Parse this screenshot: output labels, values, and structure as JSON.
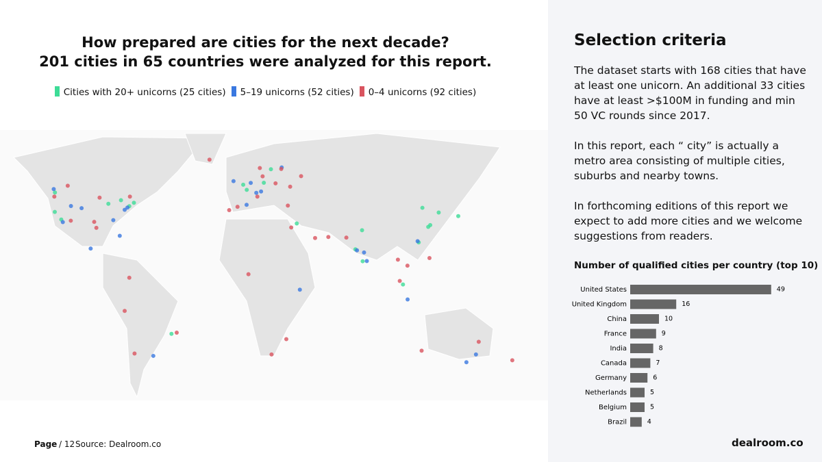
{
  "header": {
    "title_lines": [
      "How prepared are cities for the next decade?",
      "201 cities in 65 countries were analyzed for this report."
    ]
  },
  "sidebar": {
    "title": "Selection criteria",
    "paragraphs": [
      "The dataset starts with 168 cities that have at least one unicorn. An additional 33 cities have at least >$100M in funding and min 50 VC rounds since 2017.",
      "In this report, each “ city” is actually a metro area consisting of multiple cities, suburbs and nearby towns.",
      "In forthcoming editions of this report we expect to add more cities and we welcome suggestions from readers."
    ]
  },
  "footer": {
    "page_label": "Page",
    "page_number": "/ 12",
    "source": "Source: Dealroom.co",
    "brand": "dealroom.co"
  },
  "chart_data": [
    {
      "type": "scatter",
      "xlim": [
        -158,
        198
      ],
      "ylim": [
        -57,
        79
      ],
      "series": [
        {
          "name": "Cities with 20+ unicorns (25 cities)",
          "color": "#3ddc97",
          "x": [
            -122.4,
            -118.2,
            -122.3,
            -74,
            -71,
            -79.4,
            -87.6,
            0,
            2.3,
            13.4,
            18,
            34.8,
            77.6,
            72.9,
            77.2,
            116.4,
            121.5,
            114,
            120.2,
            103.8,
            -46.6,
            139.7,
            127
          ],
          "y": [
            37.8,
            34,
            47.6,
            40.7,
            42.4,
            43.7,
            41.9,
            51.5,
            48.9,
            52.5,
            59.3,
            32,
            13,
            19,
            28.6,
            39.9,
            31.2,
            22.5,
            30.3,
            1.3,
            -23.5,
            35.7,
            37.5
          ]
        },
        {
          "name": "5–19 unicorns (52 cities)",
          "color": "#3a78e0",
          "x": [
            -105,
            -80.2,
            -84.4,
            -77,
            -75.2,
            -111.9,
            -117.2,
            -123.1,
            -99.1,
            4.9,
            11.6,
            8.5,
            2.2,
            25,
            -6.3,
            78.5,
            80.3,
            73.9,
            113.3,
            151.2,
            145,
            -58.4,
            36.8,
            106.8
          ],
          "y": [
            39.7,
            25.8,
            33.7,
            38.9,
            40,
            40.8,
            32.7,
            49.3,
            19.4,
            52.4,
            48.1,
            47.4,
            41.4,
            60.2,
            53.3,
            17.4,
            13.1,
            18.5,
            23.1,
            -33.9,
            -37.8,
            -34.6,
            -1.3,
            -6.2
          ]
        },
        {
          "name": "0–4 unicorns (92 cities)",
          "color": "#d9545f",
          "x": [
            -96.8,
            -95.4,
            -112,
            -93.3,
            -122.7,
            -73.6,
            -114,
            -74,
            -77,
            -70.6,
            -43.2,
            -3.7,
            -9.1,
            9.2,
            21,
            37.6,
            29,
            31.2,
            55.3,
            46.7,
            18.4,
            28,
            67,
            100.5,
            106.7,
            121,
            101.7,
            174.8,
            153,
            115.9,
            24.7,
            30.5,
            12.6,
            10.8,
            -21.9,
            3.4
          ],
          "y": [
            32.8,
            29.8,
            33.4,
            45,
            45.5,
            45.5,
            51,
            4.7,
            -12,
            -33.4,
            -22.9,
            40.4,
            38.7,
            45.5,
            52.2,
            55.8,
            41,
            30,
            25.2,
            24.7,
            -33.9,
            -26.2,
            24.9,
            13.8,
            10.8,
            14.6,
            3.1,
            -36.8,
            -27.5,
            -32,
            59.4,
            50.5,
            55.7,
            59.9,
            64.1,
            6.5
          ]
        }
      ]
    },
    {
      "type": "hbar",
      "title": "Number of qualified cities per country (top 10)",
      "color": "#666666",
      "xlim": [
        0,
        50
      ],
      "categories": [
        "United States",
        "United Kingdom",
        "China",
        "France",
        "India",
        "Canada",
        "Germany",
        "Netherlands",
        "Belgium",
        "Brazil"
      ],
      "values": [
        49,
        16,
        10,
        9,
        8,
        7,
        6,
        5,
        5,
        4
      ]
    }
  ]
}
